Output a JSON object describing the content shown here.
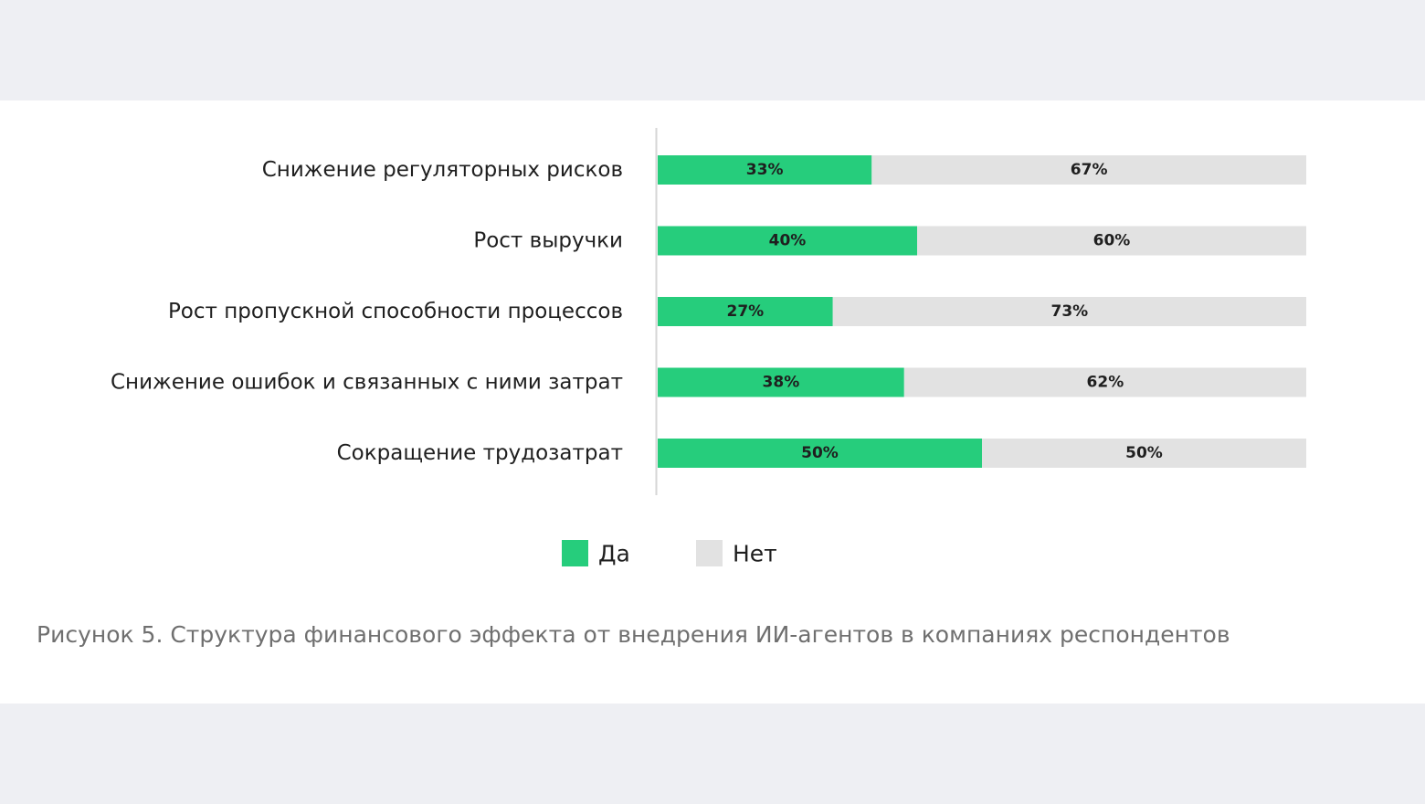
{
  "colors": {
    "yes": "#26cd7c",
    "no": "#e2e2e2",
    "axis": "#d6d6d6"
  },
  "chart_data": {
    "type": "bar",
    "orientation": "horizontal",
    "stacked": true,
    "categories": [
      "Снижение регуляторных рисков",
      "Рост выручки",
      "Рост пропускной способности процессов",
      "Снижение ошибок и связанных с ними затрат",
      "Сокращение трудозатрат"
    ],
    "series": [
      {
        "name": "Да",
        "values": [
          33,
          40,
          27,
          38,
          50
        ]
      },
      {
        "name": "Нет",
        "values": [
          67,
          60,
          73,
          62,
          50
        ]
      }
    ],
    "value_labels": [
      [
        "33%",
        "40%",
        "27%",
        "38%",
        "50%"
      ],
      [
        "67%",
        "60%",
        "73%",
        "62%",
        "50%"
      ]
    ],
    "xlim": [
      0,
      100
    ],
    "legend": "bottom-center",
    "grid": false
  },
  "caption": "Рисунок 5. Структура финансового эффекта от внедрения ИИ-агентов в компаниях респондентов"
}
